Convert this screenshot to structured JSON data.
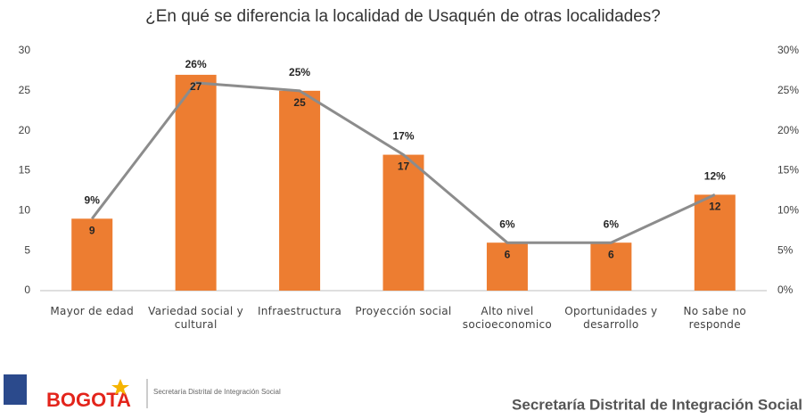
{
  "chart_data": {
    "type": "bar-line",
    "title": "¿En qué se diferencia la localidad de Usaquén de otras localidades?",
    "categories": [
      "Mayor de edad",
      "Variedad social y cultural",
      "Infraestructura",
      "Proyección social",
      "Alto nivel socioeconomico",
      "Oportunidades y desarrollo",
      "No sabe no responde"
    ],
    "series": [
      {
        "color": "#ed7d31",
        "values": [
          9,
          27,
          25,
          17,
          6,
          6,
          12
        ]
      },
      {
        "color": "#8c8c8c",
        "axis": "y2",
        "values": [
          9,
          26,
          25,
          17,
          6,
          6,
          12
        ],
        "value_labels": [
          "9%",
          "26%",
          "25%",
          "17%",
          "6%",
          "6%",
          "12%"
        ]
      }
    ],
    "ylim": [
      0,
      30
    ],
    "yticks": [
      0,
      5,
      10,
      15,
      20,
      25,
      30
    ],
    "y2lim": [
      0,
      30
    ],
    "y2ticks": [
      {
        "value": 0,
        "label": "0%"
      },
      {
        "value": 5,
        "label": "5%"
      },
      {
        "value": 10,
        "label": "10%"
      },
      {
        "value": 15,
        "label": "15%"
      },
      {
        "value": 20,
        "label": "20%"
      },
      {
        "value": 25,
        "label": "25%"
      },
      {
        "value": 30,
        "label": "30%"
      }
    ],
    "grid": false
  },
  "footer": {
    "logo": "BOGOTA",
    "logo_caption": "Secretaría Distrital de Integración Social",
    "entity": "Secretaría Distrital de Integración Social"
  }
}
